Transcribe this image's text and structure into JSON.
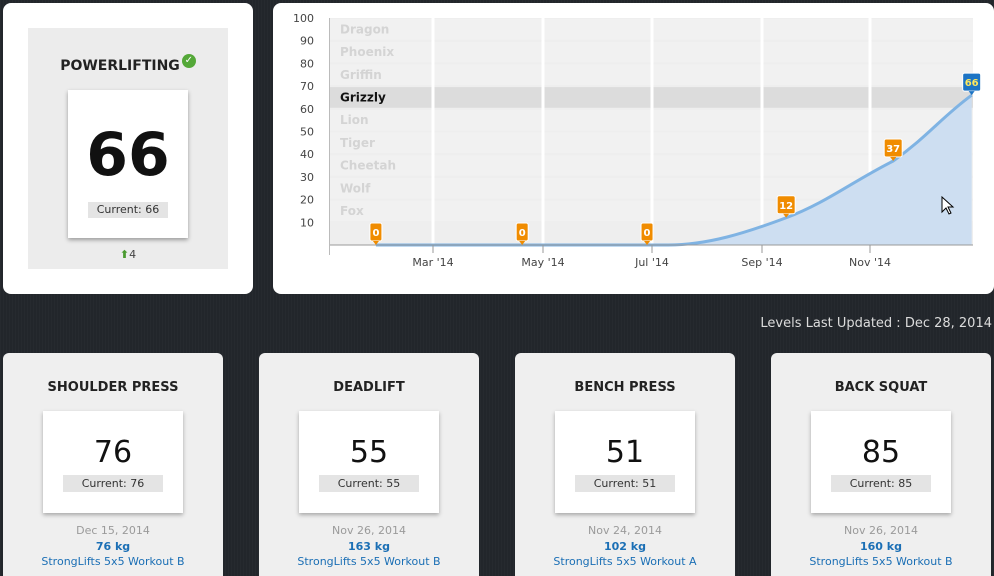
{
  "summary": {
    "title": "POWERLIFTING",
    "level": "66",
    "current_label": "Current: 66",
    "change": "4"
  },
  "chart_data": {
    "type": "area",
    "yticks": [
      "100",
      "90",
      "80",
      "70",
      "60",
      "50",
      "40",
      "30",
      "20",
      "10"
    ],
    "ylim": [
      0,
      100
    ],
    "xticks": [
      "Mar '14",
      "May '14",
      "Jul '14",
      "Sep '14",
      "Nov '14"
    ],
    "levels": [
      {
        "name": "Dragon",
        "active": false
      },
      {
        "name": "Phoenix",
        "active": false
      },
      {
        "name": "Griffin",
        "active": false
      },
      {
        "name": "Grizzly",
        "active": true
      },
      {
        "name": "Lion",
        "active": false
      },
      {
        "name": "Tiger",
        "active": false
      },
      {
        "name": "Cheetah",
        "active": false
      },
      {
        "name": "Wolf",
        "active": false
      },
      {
        "name": "Fox",
        "active": false
      }
    ],
    "points": [
      {
        "x": "2014-01-28",
        "y": 0,
        "label": "0"
      },
      {
        "x": "2014-04-20",
        "y": 0,
        "label": "0"
      },
      {
        "x": "2014-06-29",
        "y": 0,
        "label": "0"
      },
      {
        "x": "2014-09-15",
        "y": 12,
        "label": "12"
      },
      {
        "x": "2014-11-14",
        "y": 37,
        "label": "37"
      },
      {
        "x": "2014-12-28",
        "y": 66,
        "label": "66"
      }
    ],
    "colors": {
      "line": "#7fb3e3",
      "area": "#cadcf0",
      "marker": "#f08c00",
      "last_marker": "#1d74c4"
    }
  },
  "updated": "Levels Last Updated : Dec 28, 2014",
  "lifts": [
    {
      "title": "SHOULDER PRESS",
      "level": "76",
      "current_label": "Current: 76",
      "date": "Dec 15, 2014",
      "weight": "76 kg",
      "workout": "StrongLifts 5x5 Workout B"
    },
    {
      "title": "DEADLIFT",
      "level": "55",
      "current_label": "Current: 55",
      "date": "Nov 26, 2014",
      "weight": "163 kg",
      "workout": "StrongLifts 5x5 Workout B"
    },
    {
      "title": "BENCH PRESS",
      "level": "51",
      "current_label": "Current: 51",
      "date": "Nov 24, 2014",
      "weight": "102 kg",
      "workout": "StrongLifts 5x5 Workout A"
    },
    {
      "title": "BACK SQUAT",
      "level": "85",
      "current_label": "Current: 85",
      "date": "Nov 26, 2014",
      "weight": "160 kg",
      "workout": "StrongLifts 5x5 Workout B"
    }
  ]
}
